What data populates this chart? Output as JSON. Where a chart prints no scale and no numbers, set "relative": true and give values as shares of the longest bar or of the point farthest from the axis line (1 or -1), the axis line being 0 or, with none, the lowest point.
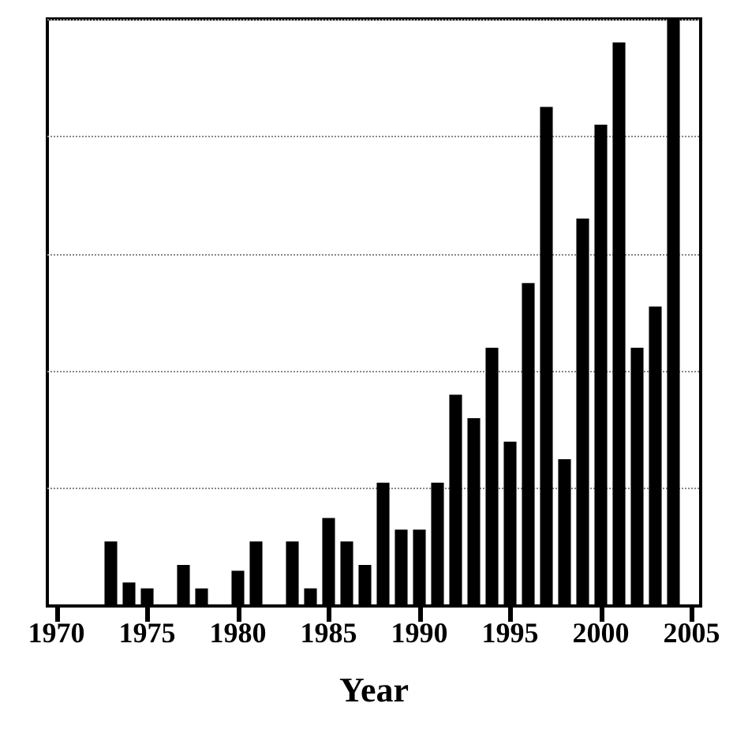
{
  "chart_data": {
    "type": "bar",
    "relative": true,
    "xlabel": "Year",
    "color": "#000000",
    "grid": "y",
    "categories": [
      "1970",
      null,
      null,
      null,
      null,
      "1975",
      null,
      null,
      null,
      null,
      "1980",
      null,
      null,
      null,
      null,
      "1985",
      null,
      null,
      null,
      null,
      "1990",
      null,
      null,
      null,
      null,
      "1995",
      null,
      null,
      null,
      null,
      "2000",
      null,
      null,
      null,
      null,
      "2005"
    ],
    "values": [
      0,
      0,
      0,
      0.11,
      0.04,
      0.03,
      0,
      0.07,
      0.03,
      0,
      0.06,
      0.11,
      0,
      0.11,
      0.03,
      0.15,
      0.11,
      0.07,
      0.21,
      0.13,
      0.13,
      0.21,
      0.36,
      0.32,
      0.44,
      0.28,
      0.55,
      0.85,
      0.25,
      0.66,
      0.82,
      0.96,
      0.44,
      0.51,
      1,
      null
    ]
  }
}
